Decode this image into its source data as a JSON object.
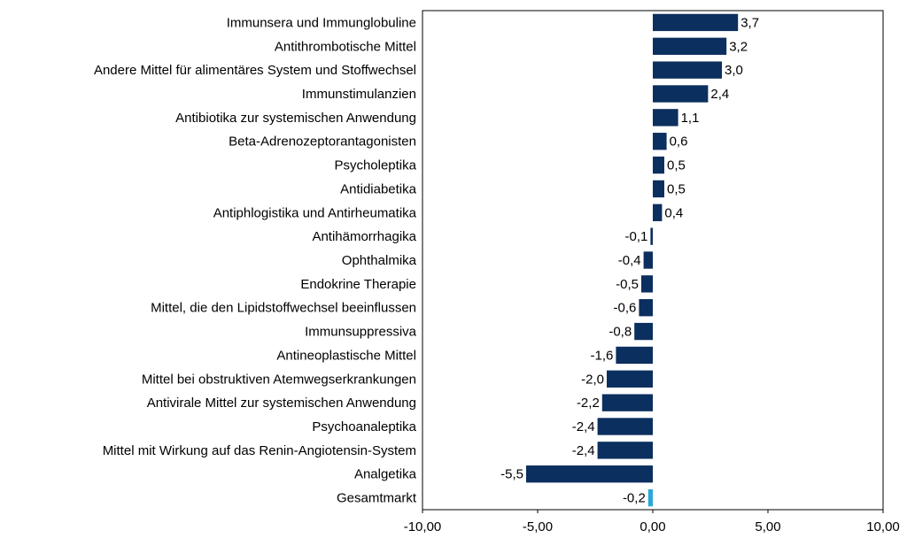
{
  "chart_data": {
    "type": "barh",
    "categories": [
      "Immunsera und Immunglobuline",
      "Antithrombotische Mittel",
      "Andere Mittel für alimentäres System und Stoffwechsel",
      "Immunstimulanzien",
      "Antibiotika zur systemischen Anwendung",
      "Beta-Adrenozeptorantagonisten",
      "Psycholeptika",
      "Antidiabetika",
      "Antiphlogistika und Antirheumatika",
      "Antihämorrhagika",
      "Ophthalmika",
      "Endokrine Therapie",
      "Mittel, die den Lipidstoffwechsel beeinflussen",
      "Immunsuppressiva",
      "Antineoplastische Mittel",
      "Mittel bei obstruktiven Atemwegserkrankungen",
      "Antivirale Mittel zur systemischen Anwendung",
      "Psychoanaleptika",
      "Mittel mit Wirkung auf das Renin-Angiotensin-System",
      "Analgetika",
      "Gesamtmarkt"
    ],
    "values": [
      3.7,
      3.2,
      3.0,
      2.4,
      1.1,
      0.6,
      0.5,
      0.5,
      0.4,
      -0.1,
      -0.4,
      -0.5,
      -0.6,
      -0.8,
      -1.6,
      -2.0,
      -2.2,
      -2.4,
      -2.4,
      -5.5,
      -0.2
    ],
    "value_labels": [
      "3,7",
      "3,2",
      "3,0",
      "2,4",
      "1,1",
      "0,6",
      "0,5",
      "0,5",
      "0,4",
      "-0,1",
      "-0,4",
      "-0,5",
      "-0,6",
      "-0,8",
      "-1,6",
      "-2,0",
      "-2,2",
      "-2,4",
      "-2,4",
      "-5,5",
      "-0,2"
    ],
    "colors": [
      "#0b2f5e",
      "#0b2f5e",
      "#0b2f5e",
      "#0b2f5e",
      "#0b2f5e",
      "#0b2f5e",
      "#0b2f5e",
      "#0b2f5e",
      "#0b2f5e",
      "#0b2f5e",
      "#0b2f5e",
      "#0b2f5e",
      "#0b2f5e",
      "#0b2f5e",
      "#0b2f5e",
      "#0b2f5e",
      "#0b2f5e",
      "#0b2f5e",
      "#0b2f5e",
      "#0b2f5e",
      "#2aa7d9"
    ],
    "xlim": [
      -10,
      10
    ],
    "xticks": [
      {
        "value": -10,
        "label": "-10,00"
      },
      {
        "value": -5,
        "label": "-5,00"
      },
      {
        "value": 0,
        "label": "0,00"
      },
      {
        "value": 5,
        "label": "5,00"
      },
      {
        "value": 10,
        "label": "10,00"
      }
    ],
    "grid": false
  }
}
